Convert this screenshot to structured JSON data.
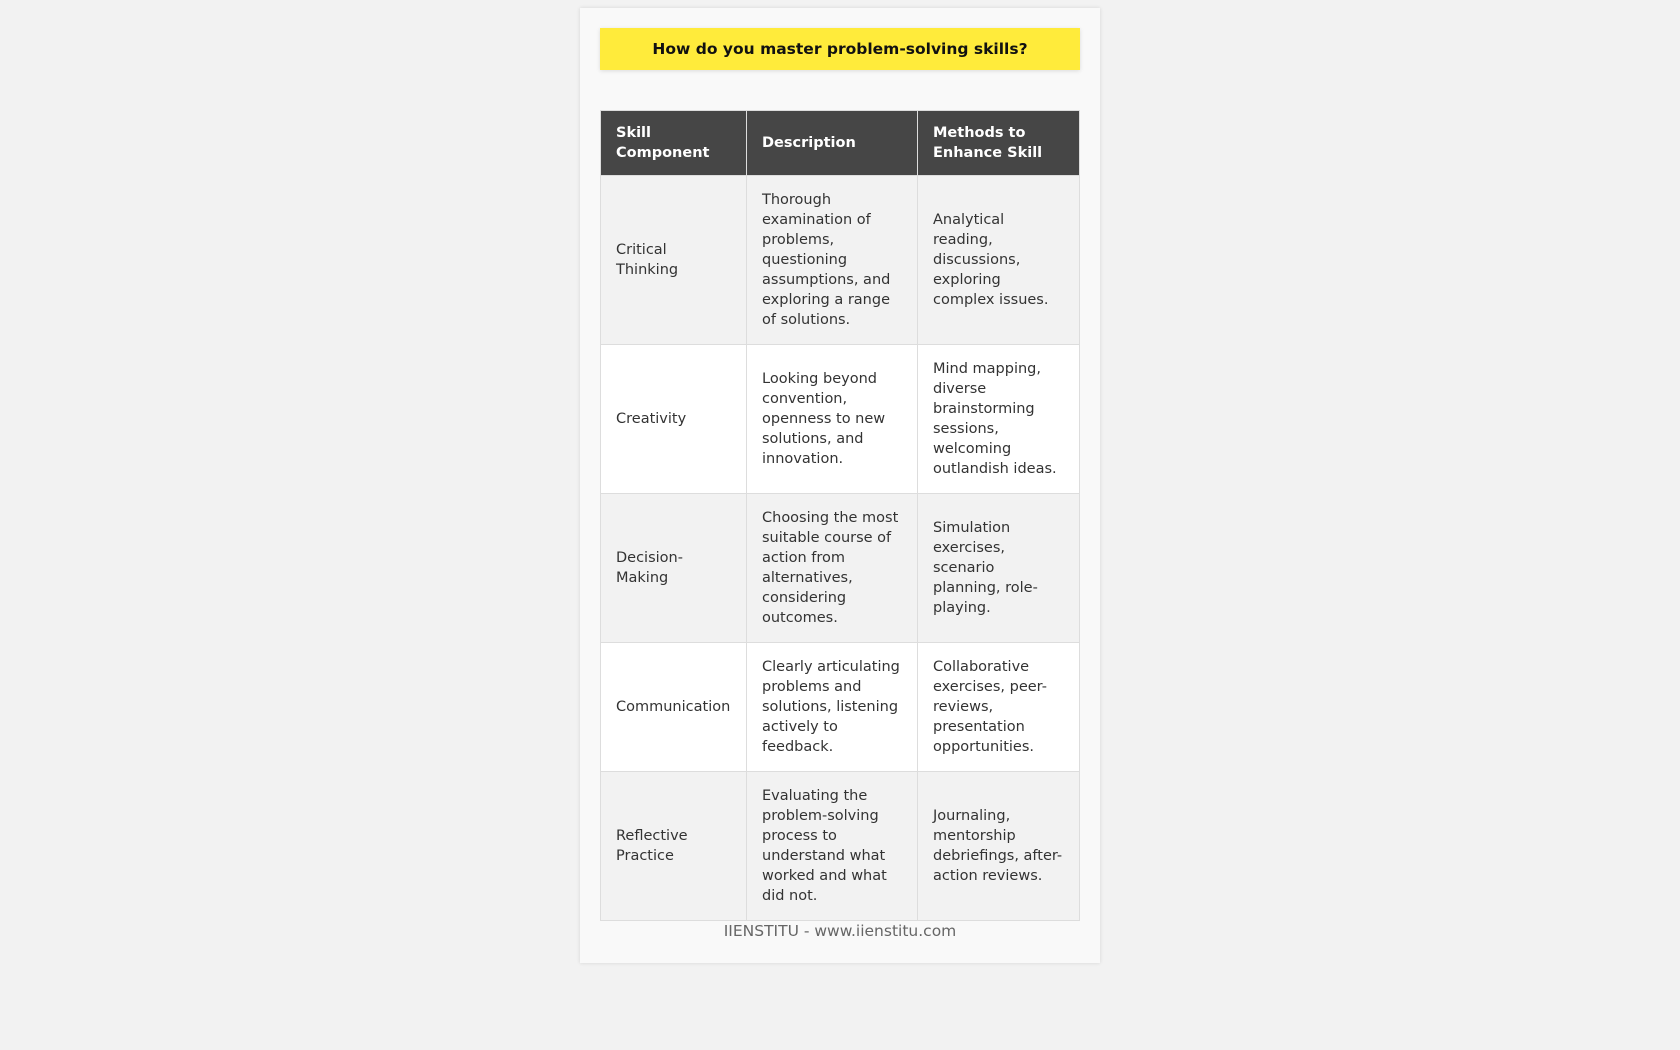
{
  "title": "How do you master problem-solving skills?",
  "table": {
    "headers": [
      "Skill Component",
      "Description",
      "Methods to Enhance Skill"
    ],
    "rows": [
      [
        "Critical Thinking",
        "Thorough examination of problems, questioning assumptions, and exploring a range of solutions.",
        "Analytical reading, discussions, exploring complex issues."
      ],
      [
        "Creativity",
        "Looking beyond convention, openness to new solutions, and innovation.",
        "Mind mapping, diverse brainstorming sessions, welcoming outlandish ideas."
      ],
      [
        "Decision-Making",
        "Choosing the most suitable course of action from alternatives, considering outcomes.",
        "Simulation exercises, scenario planning, role-playing."
      ],
      [
        "Communication",
        "Clearly articulating problems and solutions, listening actively to feedback.",
        "Collaborative exercises, peer-reviews, presentation opportunities."
      ],
      [
        "Reflective Practice",
        "Evaluating the problem-solving process to understand what worked and what did not.",
        "Journaling, mentorship debriefings, after-action reviews."
      ]
    ]
  },
  "footer": "IIENSTITU - www.iienstitu.com",
  "colors": {
    "title_bg": "#ffeb3b",
    "header_bg": "#464646"
  }
}
